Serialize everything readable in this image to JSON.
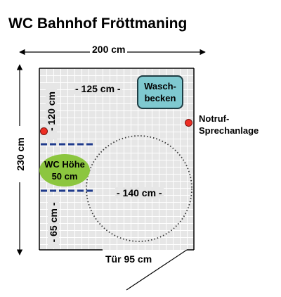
{
  "title": "WC Bahnhof Fröttmaning",
  "dimensions": {
    "width_total": "200 cm",
    "height_total": "230 cm",
    "inner_width": "- 125 cm -",
    "left_upper": "- 120 cm",
    "left_lower": "- 65 cm -",
    "turning_circle": "- 140 cm -",
    "door": "Tür 95 cm"
  },
  "fixtures": {
    "sink_line1": "Wasch-",
    "sink_line2": "becken",
    "wc_line1": "WC Höhe",
    "wc_line2": "50 cm"
  },
  "emergency": {
    "line1": "Notruf-",
    "line2": "Sprechanlage"
  },
  "colors": {
    "room_fill": "#e6e6e6",
    "sink": "#7fc9d0",
    "wc": "#8cc63f",
    "emergency_dot": "#ee2e24",
    "grab_bar": "#1f3b8c"
  }
}
